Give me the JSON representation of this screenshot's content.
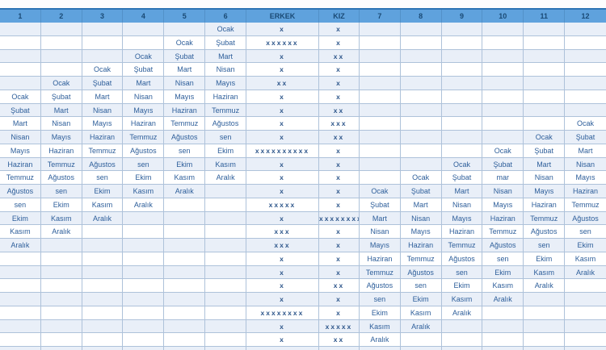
{
  "table": {
    "columns": [
      "1",
      "2",
      "3",
      "4",
      "5",
      "6",
      "ERKEK",
      "KIZ",
      "7",
      "8",
      "9",
      "10",
      "11",
      "12"
    ],
    "rows": [
      [
        "",
        "",
        "",
        "",
        "",
        "Ocak",
        "x",
        "x",
        "",
        "",
        "",
        "",
        "",
        ""
      ],
      [
        "",
        "",
        "",
        "",
        "Ocak",
        "Şubat",
        "xxxxxx",
        "x",
        "",
        "",
        "",
        "",
        "",
        ""
      ],
      [
        "",
        "",
        "",
        "Ocak",
        "Şubat",
        "Mart",
        "x",
        "xx",
        "",
        "",
        "",
        "",
        "",
        ""
      ],
      [
        "",
        "",
        "Ocak",
        "Şubat",
        "Mart",
        "Nisan",
        "x",
        "x",
        "",
        "",
        "",
        "",
        "",
        ""
      ],
      [
        "",
        "Ocak",
        "Şubat",
        "Mart",
        "Nisan",
        "Mayıs",
        "xx",
        "x",
        "",
        "",
        "",
        "",
        "",
        ""
      ],
      [
        "Ocak",
        "Şubat",
        "Mart",
        "Nisan",
        "Mayıs",
        "Haziran",
        "x",
        "x",
        "",
        "",
        "",
        "",
        "",
        ""
      ],
      [
        "Şubat",
        "Mart",
        "Nisan",
        "Mayıs",
        "Haziran",
        "Temmuz",
        "x",
        "xx",
        "",
        "",
        "",
        "",
        "",
        ""
      ],
      [
        "Mart",
        "Nisan",
        "Mayıs",
        "Haziran",
        "Temmuz",
        "Ağustos",
        "x",
        "xxx",
        "",
        "",
        "",
        "",
        "",
        "Ocak"
      ],
      [
        "Nisan",
        "Mayıs",
        "Haziran",
        "Temmuz",
        "Ağustos",
        "sen",
        "x",
        "xx",
        "",
        "",
        "",
        "",
        "Ocak",
        "Şubat"
      ],
      [
        "Mayıs",
        "Haziran",
        "Temmuz",
        "Ağustos",
        "sen",
        "Ekim",
        "xxxxxxxxxx",
        "x",
        "",
        "",
        "",
        "Ocak",
        "Şubat",
        "Mart"
      ],
      [
        "Haziran",
        "Temmuz",
        "Ağustos",
        "sen",
        "Ekim",
        "Kasım",
        "x",
        "x",
        "",
        "",
        "Ocak",
        "Şubat",
        "Mart",
        "Nisan"
      ],
      [
        "Temmuz",
        "Ağustos",
        "sen",
        "Ekim",
        "Kasım",
        "Aralık",
        "x",
        "x",
        "",
        "Ocak",
        "Şubat",
        "mar",
        "Nisan",
        "Mayıs"
      ],
      [
        "Ağustos",
        "sen",
        "Ekim",
        "Kasım",
        "Aralık",
        "",
        "x",
        "x",
        "Ocak",
        "Şubat",
        "Mart",
        "Nisan",
        "Mayıs",
        "Haziran"
      ],
      [
        "sen",
        "Ekim",
        "Kasım",
        "Aralık",
        "",
        "",
        "xxxxx",
        "x",
        "Şubat",
        "Mart",
        "Nisan",
        "Mayıs",
        "Haziran",
        "Temmuz"
      ],
      [
        "Ekim",
        "Kasım",
        "Aralık",
        "",
        "",
        "",
        "x",
        "xxxxxxxx",
        "Mart",
        "Nisan",
        "Mayıs",
        "Haziran",
        "Temmuz",
        "Ağustos"
      ],
      [
        "Kasım",
        "Aralık",
        "",
        "",
        "",
        "",
        "xxx",
        "x",
        "Nisan",
        "Mayıs",
        "Haziran",
        "Temmuz",
        "Ağustos",
        "sen"
      ],
      [
        "Aralık",
        "",
        "",
        "",
        "",
        "",
        "xxx",
        "x",
        "Mayıs",
        "Haziran",
        "Temmuz",
        "Ağustos",
        "sen",
        "Ekim"
      ],
      [
        "",
        "",
        "",
        "",
        "",
        "",
        "x",
        "x",
        "Haziran",
        "Temmuz",
        "Ağustos",
        "sen",
        "Ekim",
        "Kasım"
      ],
      [
        "",
        "",
        "",
        "",
        "",
        "",
        "x",
        "x",
        "Temmuz",
        "Ağustos",
        "sen",
        "Ekim",
        "Kasım",
        "Aralık"
      ],
      [
        "",
        "",
        "",
        "",
        "",
        "",
        "x",
        "xx",
        "Ağustos",
        "sen",
        "Ekim",
        "Kasım",
        "Aralık",
        ""
      ],
      [
        "",
        "",
        "",
        "",
        "",
        "",
        "x",
        "x",
        "sen",
        "Ekim",
        "Kasım",
        "Aralık",
        "",
        ""
      ],
      [
        "",
        "",
        "",
        "",
        "",
        "",
        "xxxxxxxx",
        "x",
        "Ekim",
        "Kasım",
        "Aralık",
        "",
        "",
        ""
      ],
      [
        "",
        "",
        "",
        "",
        "",
        "",
        "x",
        "xxxxx",
        "Kasım",
        "Aralık",
        "",
        "",
        "",
        ""
      ],
      [
        "",
        "",
        "",
        "",
        "",
        "",
        "x",
        "xx",
        "Aralık",
        "",
        "",
        "",
        "",
        ""
      ],
      [
        "",
        "",
        "",
        "",
        "",
        "",
        "",
        "",
        "",
        "",
        "",
        "",
        "",
        ""
      ]
    ]
  },
  "colors": {
    "header_bg": "#5fa2dd",
    "header_top_border": "#2e74b5",
    "header_text": "#1a4a75",
    "cell_text": "#2d5e9a",
    "band_row_bg": "#e9eff8",
    "white_row_bg": "#ffffff",
    "grid_border": "#aec2da"
  }
}
